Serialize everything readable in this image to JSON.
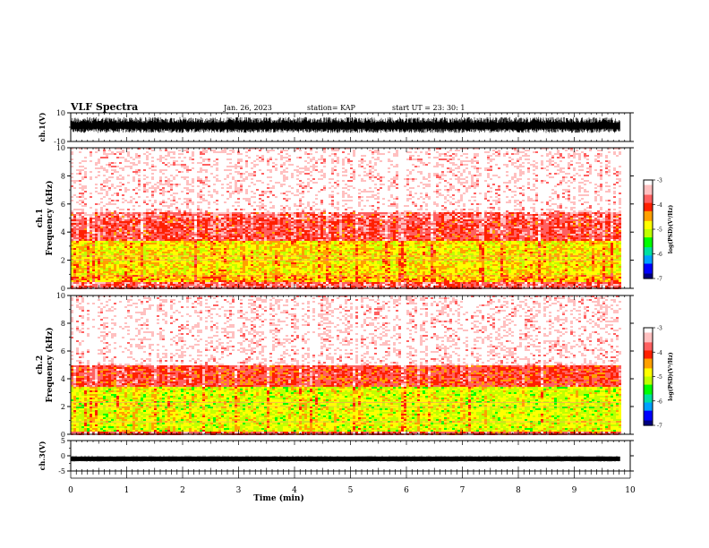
{
  "header": {
    "title": "VLF Spectra",
    "date": "Jan. 26, 2023",
    "station": "station= KAP",
    "start": "start  UT  =   23: 30: 1"
  },
  "chart_data": [
    {
      "type": "line",
      "id": "ch1-waveform",
      "ylabel": "ch.1(V)",
      "ylim": [
        -10,
        10
      ],
      "yticks": [
        "10",
        "-10"
      ],
      "xlim": [
        0,
        10
      ],
      "description_of_values": "dense waveform filling roughly -4 to +7 V",
      "x_extent_max": 9.82
    },
    {
      "type": "heatmap",
      "id": "ch1-spectrogram",
      "ylabel": "Frequency (kHz)",
      "ylabel_prefix": "ch.1",
      "ylim": [
        0,
        10
      ],
      "yticks": [
        "0",
        "2",
        "4",
        "6",
        "8",
        "10"
      ],
      "xlim": [
        0,
        10
      ],
      "x_extent_max": 9.82,
      "colorbar": {
        "label": "log(PSD)(V²/Hz)",
        "range": [
          -7,
          -3
        ],
        "ticks": [
          "-3",
          "-4",
          "-5",
          "-6",
          "-7"
        ]
      },
      "bands_kHz": [
        {
          "from": 0,
          "to": 0.5,
          "level": -3.8
        },
        {
          "from": 0.5,
          "to": 1.0,
          "level": -4.6
        },
        {
          "from": 1.0,
          "to": 3.5,
          "level": -4.8
        },
        {
          "from": 3.5,
          "to": 5.5,
          "level": -3.9
        },
        {
          "from": 5.5,
          "to": 10,
          "level": -3.2
        }
      ]
    },
    {
      "type": "heatmap",
      "id": "ch2-spectrogram",
      "ylabel": "Frequency (kHz)",
      "ylabel_prefix": "ch.2",
      "ylim": [
        0,
        10
      ],
      "yticks": [
        "0",
        "2",
        "4",
        "6",
        "8",
        "10"
      ],
      "xlim": [
        0,
        10
      ],
      "x_extent_max": 9.82,
      "colorbar": {
        "label": "log(PSD)(V²/Hz)",
        "range": [
          -7,
          -3
        ],
        "ticks": [
          "-3",
          "-4",
          "-5",
          "-6",
          "-7"
        ]
      },
      "bands_kHz": [
        {
          "from": 0,
          "to": 0.3,
          "level": -3.9
        },
        {
          "from": 0.3,
          "to": 3.5,
          "level": -5.0
        },
        {
          "from": 3.5,
          "to": 5.0,
          "level": -4.0
        },
        {
          "from": 5.0,
          "to": 10,
          "level": -3.2
        }
      ]
    },
    {
      "type": "line",
      "id": "ch3-waveform",
      "ylabel": "ch.3(V)",
      "ylim": [
        -5,
        5
      ],
      "yticks": [
        "5",
        "0",
        "-5"
      ],
      "xlim": [
        0,
        10
      ],
      "x_extent_max": 9.82,
      "description_of_values": "thin band near -1 V",
      "level": -1,
      "xlabel": "Time (min)",
      "xticks": [
        "0",
        "1",
        "2",
        "3",
        "4",
        "5",
        "6",
        "7",
        "8",
        "9",
        "10"
      ]
    }
  ],
  "colormap": [
    "#000080",
    "#0000ff",
    "#00a0ff",
    "#00e0a0",
    "#00ff00",
    "#c0ff00",
    "#ffff00",
    "#ffa000",
    "#ff2000",
    "#ff6060",
    "#ffc0c0",
    "#ffffff"
  ]
}
